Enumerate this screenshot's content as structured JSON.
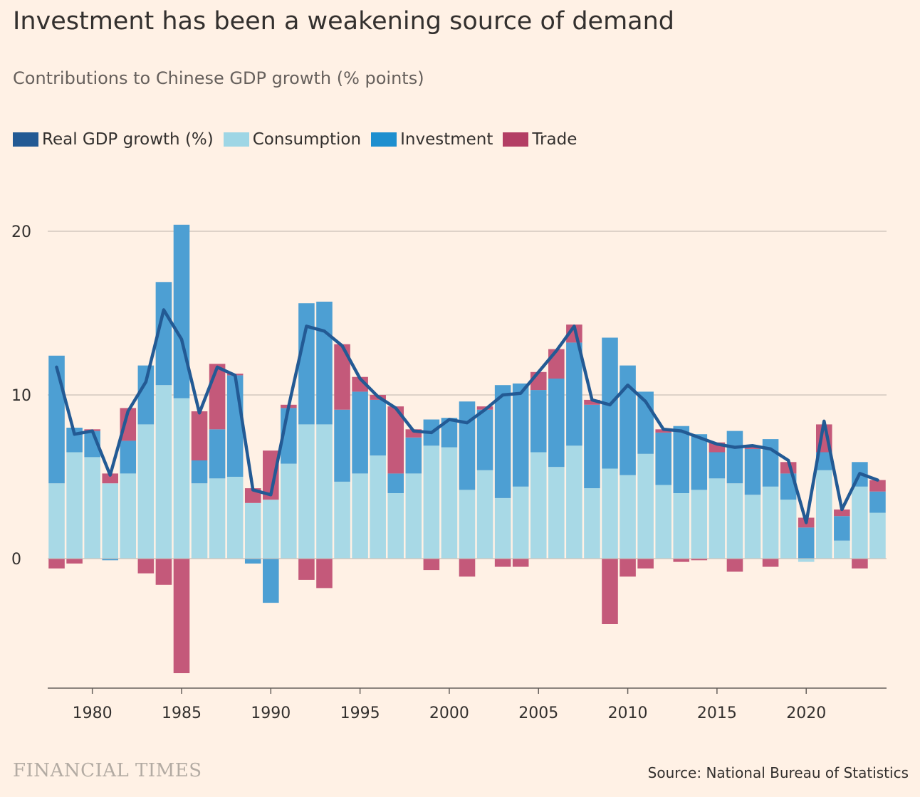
{
  "title": "Investment has been a weakening source of demand",
  "subtitle": "Contributions to Chinese GDP growth (% points)",
  "legend": [
    {
      "label": "Real GDP growth (%)",
      "color": "#235a94"
    },
    {
      "label": "Consumption",
      "color": "#9ed6e5"
    },
    {
      "label": "Investment",
      "color": "#1e8fcf"
    },
    {
      "label": "Trade",
      "color": "#b33e64"
    }
  ],
  "source": "Source: National Bureau of Statistics",
  "brand": "FINANCIAL TIMES",
  "colors": {
    "consumption": "#a8d9e6",
    "investment": "#4d9fd3",
    "trade": "#c4597a",
    "gdp_line": "#235a94",
    "grid": "#c9c0b7",
    "baseline": "#66605c"
  },
  "chart_data": {
    "type": "bar",
    "stacked": true,
    "title": "Investment has been a weakening source of demand",
    "subtitle": "Contributions to Chinese GDP growth (% points)",
    "ylim": [
      -8,
      20
    ],
    "yticks": [
      0,
      10,
      20
    ],
    "xlim": [
      1977.5,
      2024.5
    ],
    "xticks": [
      1980,
      1985,
      1990,
      1995,
      2000,
      2005,
      2010,
      2015,
      2020
    ],
    "grid": true,
    "legend_position": "top-left",
    "x": [
      1978,
      1979,
      1980,
      1981,
      1982,
      1983,
      1984,
      1985,
      1986,
      1987,
      1988,
      1989,
      1990,
      1991,
      1992,
      1993,
      1994,
      1995,
      1996,
      1997,
      1998,
      1999,
      2000,
      2001,
      2002,
      2003,
      2004,
      2005,
      2006,
      2007,
      2008,
      2009,
      2010,
      2011,
      2012,
      2013,
      2014,
      2015,
      2016,
      2017,
      2018,
      2019,
      2020,
      2021,
      2022,
      2023,
      2024
    ],
    "series": [
      {
        "name": "Consumption",
        "type": "bar",
        "values": [
          4.6,
          6.5,
          6.2,
          4.6,
          5.2,
          8.2,
          10.6,
          9.8,
          4.6,
          4.9,
          5.0,
          3.4,
          3.6,
          5.8,
          8.2,
          8.2,
          4.7,
          5.2,
          6.3,
          4.0,
          5.2,
          6.9,
          6.8,
          4.2,
          5.4,
          3.7,
          4.4,
          6.5,
          5.6,
          6.9,
          4.3,
          5.5,
          5.1,
          6.4,
          4.5,
          4.0,
          4.2,
          4.9,
          4.6,
          3.9,
          4.4,
          3.6,
          -0.2,
          5.4,
          1.1,
          4.4,
          2.8
        ]
      },
      {
        "name": "Investment",
        "type": "bar",
        "values": [
          7.8,
          1.5,
          1.6,
          -0.1,
          2.0,
          3.6,
          6.3,
          10.6,
          1.4,
          3.0,
          6.2,
          -0.3,
          -2.7,
          3.4,
          7.4,
          7.5,
          4.4,
          5.0,
          3.4,
          1.2,
          2.2,
          1.6,
          1.8,
          5.4,
          3.7,
          6.9,
          6.3,
          3.8,
          5.4,
          6.3,
          5.1,
          8.0,
          6.7,
          3.8,
          3.2,
          4.1,
          3.4,
          1.6,
          3.2,
          2.8,
          2.9,
          1.6,
          1.9,
          1.1,
          1.5,
          1.5,
          1.3
        ]
      },
      {
        "name": "Trade",
        "type": "bar",
        "values": [
          -0.6,
          -0.3,
          0.1,
          0.6,
          2.0,
          -0.9,
          -1.6,
          -7.0,
          3.0,
          4.0,
          0.1,
          0.9,
          3.0,
          0.2,
          -1.3,
          -1.8,
          4.0,
          0.9,
          0.3,
          4.1,
          0.5,
          -0.7,
          0.0,
          -1.1,
          0.2,
          -0.5,
          -0.5,
          1.1,
          1.8,
          1.1,
          0.3,
          -4.0,
          -1.1,
          -0.6,
          0.2,
          -0.2,
          -0.1,
          0.6,
          -0.8,
          0.2,
          -0.5,
          0.7,
          0.6,
          1.7,
          0.4,
          -0.6,
          0.7
        ]
      },
      {
        "name": "Real GDP growth (%)",
        "type": "line",
        "values": [
          11.7,
          7.6,
          7.8,
          5.1,
          9.0,
          10.8,
          15.2,
          13.4,
          8.9,
          11.7,
          11.2,
          4.2,
          3.9,
          9.3,
          14.2,
          13.9,
          13.0,
          11.0,
          9.9,
          9.2,
          7.8,
          7.7,
          8.5,
          8.3,
          9.1,
          10.0,
          10.1,
          11.4,
          12.7,
          14.2,
          9.7,
          9.4,
          10.6,
          9.6,
          7.9,
          7.8,
          7.4,
          7.0,
          6.8,
          6.9,
          6.7,
          6.0,
          2.2,
          8.4,
          3.0,
          5.2,
          4.8
        ]
      }
    ]
  }
}
